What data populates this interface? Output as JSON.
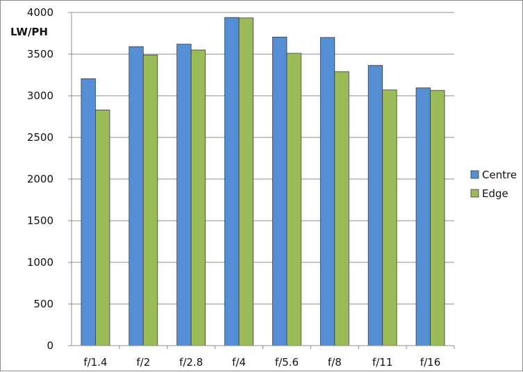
{
  "chart_data": {
    "type": "bar",
    "ylabel": "LW/PH",
    "xlabel": "",
    "ylim": [
      0,
      4000
    ],
    "yticks": [
      0,
      500,
      1000,
      1500,
      2000,
      2500,
      3000,
      3500,
      4000
    ],
    "grid": true,
    "legend_position": "right",
    "categories": [
      "f/1.4",
      "f/2",
      "f/2.8",
      "f/4",
      "f/5.6",
      "f/8",
      "f/11",
      "f/16"
    ],
    "series": [
      {
        "name": "Centre",
        "color": "#558ED5",
        "values": [
          3205,
          3590,
          3620,
          3940,
          3705,
          3700,
          3365,
          3095
        ]
      },
      {
        "name": "Edge",
        "color": "#9BBB59",
        "values": [
          2830,
          3490,
          3550,
          3935,
          3510,
          3290,
          3070,
          3065
        ]
      }
    ]
  }
}
